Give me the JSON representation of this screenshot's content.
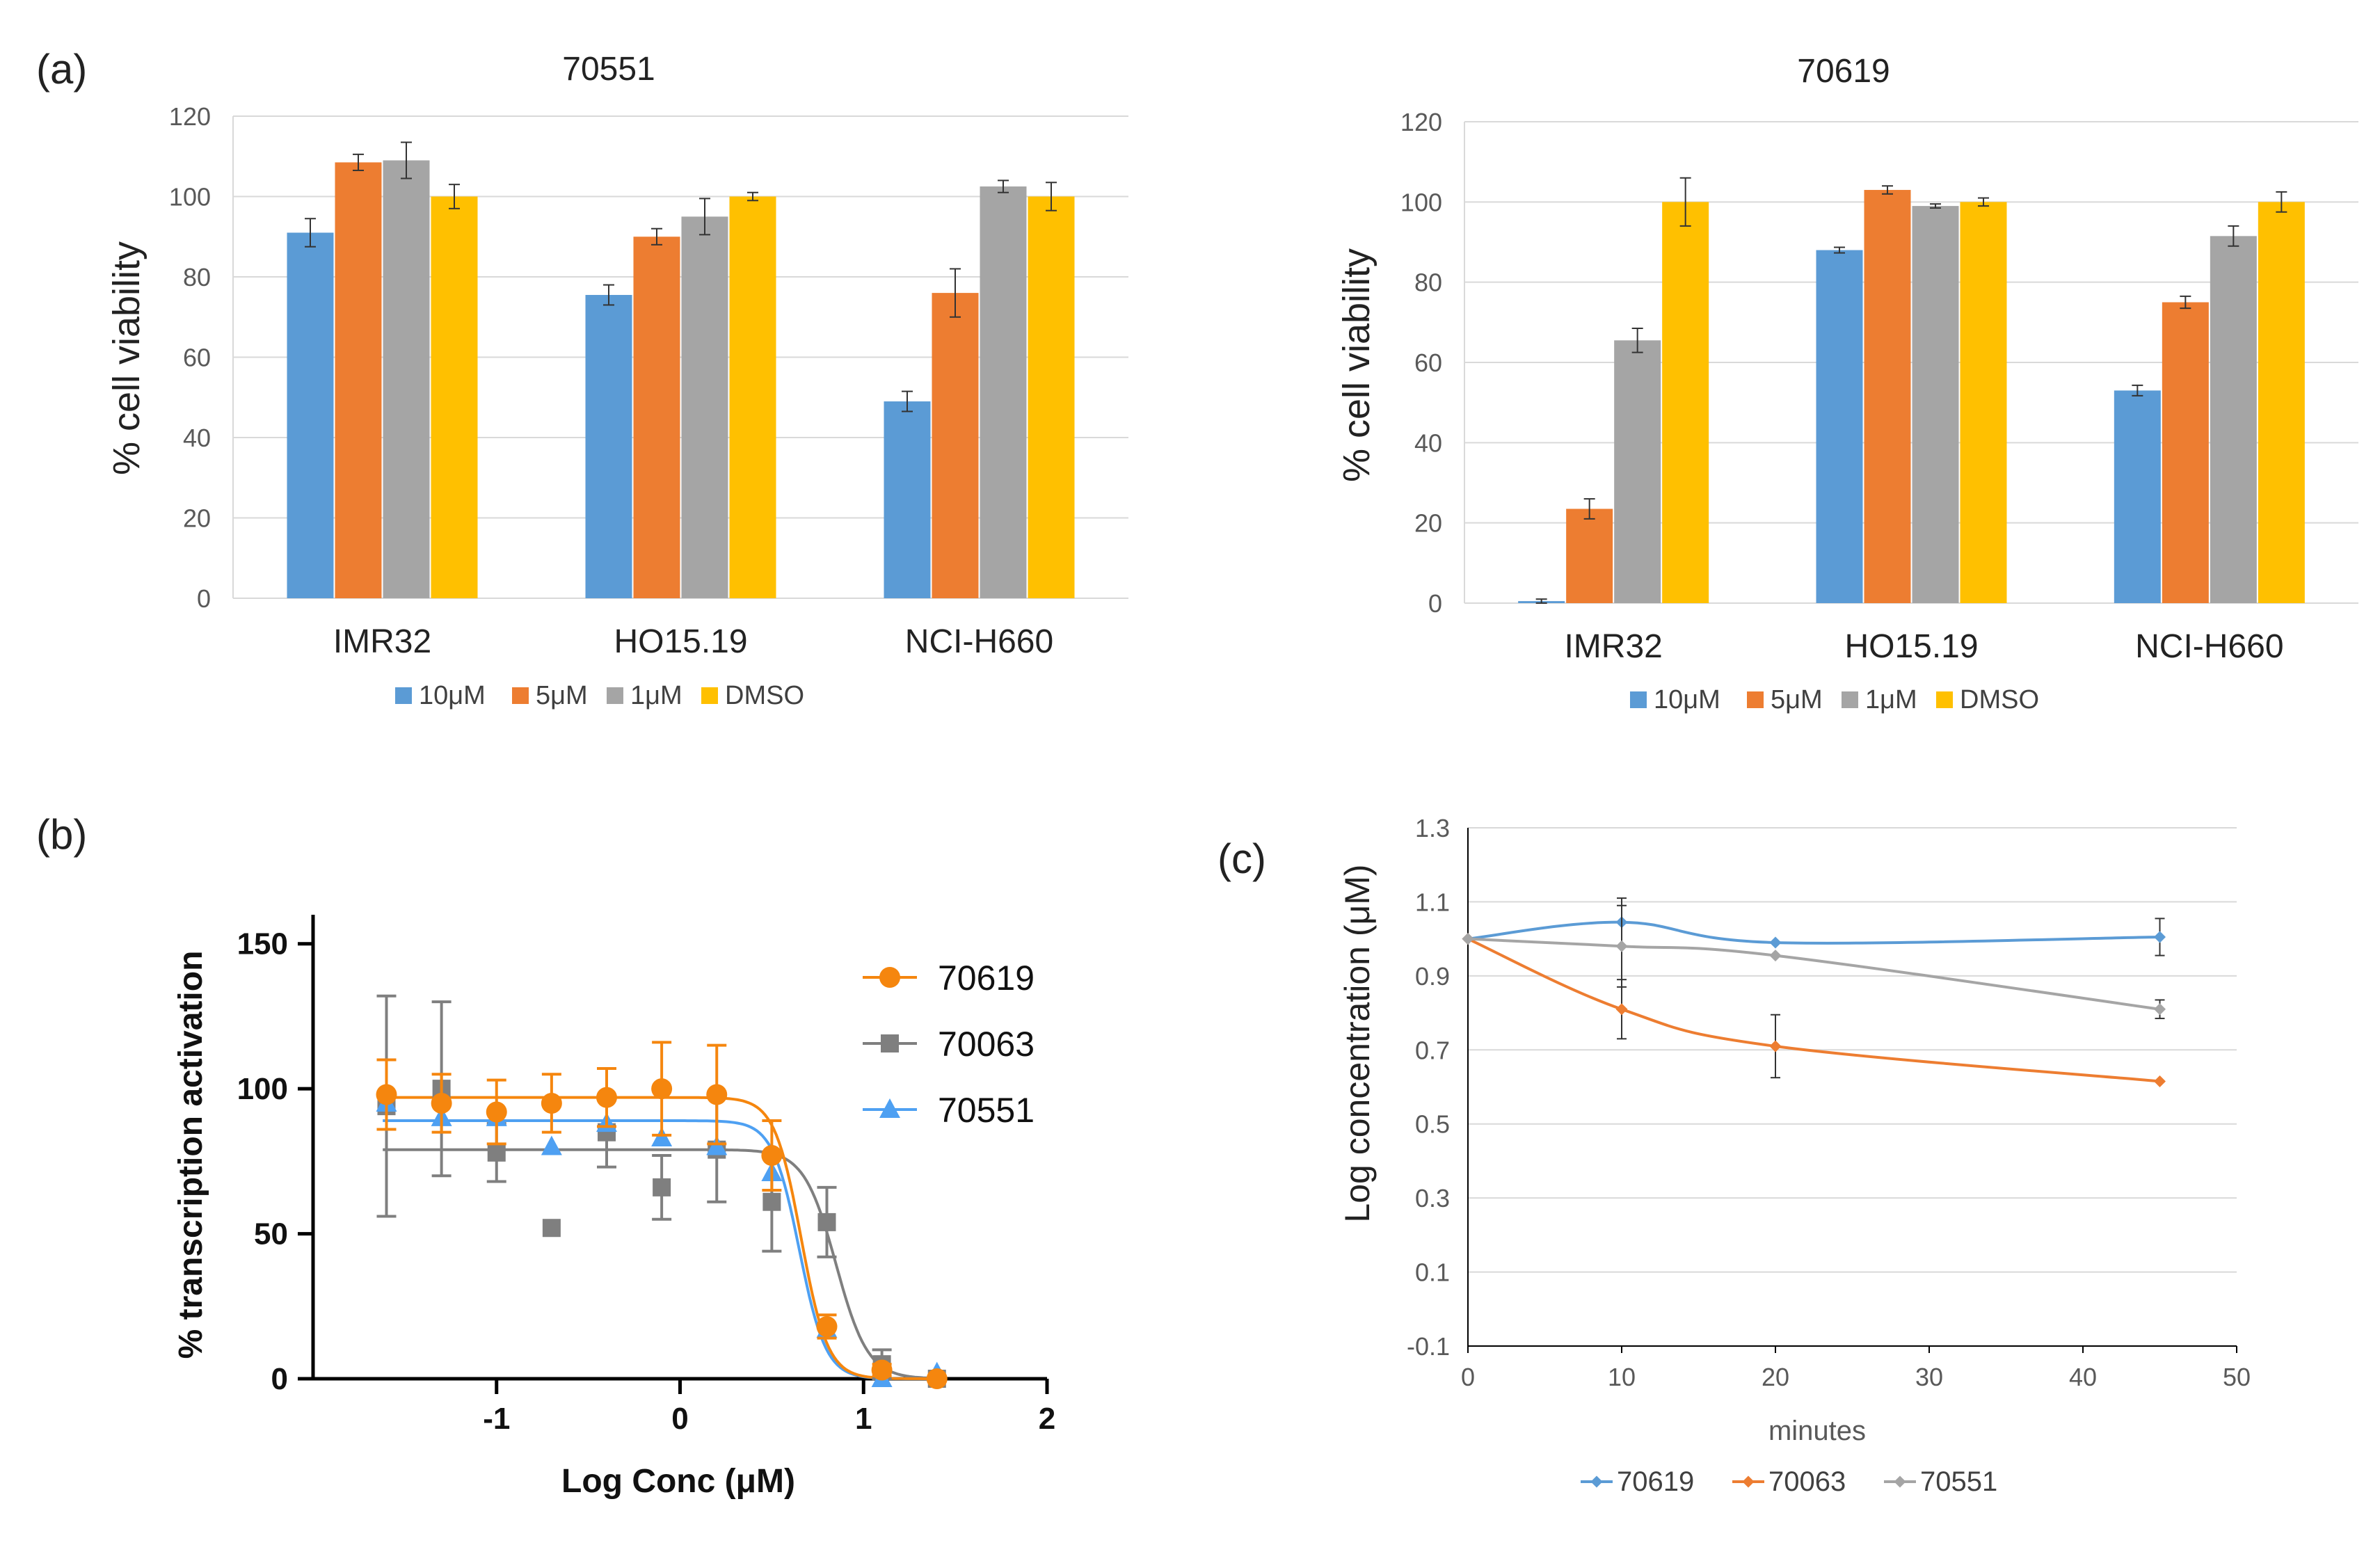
{
  "panels": {
    "a": "(a)",
    "b": "(b)",
    "c": "(c)"
  },
  "colors": {
    "c10": "#5B9BD5",
    "c5": "#ED7D31",
    "c1": "#A5A5A5",
    "dmso": "#FFC000",
    "gray": "#7F7F7F",
    "orange": "#F5860E",
    "blue": "#4EA0F2"
  },
  "chart_data": [
    {
      "id": "a1",
      "type": "bar",
      "title": "70551",
      "ylabel": "% cell viability",
      "ylim": [
        0,
        120
      ],
      "yticks": [
        "0",
        "20",
        "40",
        "60",
        "80",
        "100",
        "120"
      ],
      "categories": [
        "IMR32",
        "HO15.19",
        "NCI-H660"
      ],
      "series": [
        {
          "name": "10μM",
          "values": [
            91,
            75.5,
            49
          ],
          "err": [
            3.5,
            2.5,
            2.5
          ]
        },
        {
          "name": "5μM",
          "values": [
            108.5,
            90,
            76
          ],
          "err": [
            2,
            2,
            6
          ]
        },
        {
          "name": "1μM",
          "values": [
            109,
            95,
            102.5
          ],
          "err": [
            4.5,
            4.5,
            1.5
          ]
        },
        {
          "name": "DMSO",
          "values": [
            100,
            100,
            100
          ],
          "err": [
            3,
            1,
            3.5
          ]
        }
      ],
      "legend": [
        "10μM",
        "5μM",
        "1μM",
        "DMSO"
      ]
    },
    {
      "id": "a2",
      "type": "bar",
      "title": "70619",
      "ylabel": "% cell viability",
      "ylim": [
        0,
        120
      ],
      "yticks": [
        "0",
        "20",
        "40",
        "60",
        "80",
        "100",
        "120"
      ],
      "categories": [
        "IMR32",
        "HO15.19",
        "NCI-H660"
      ],
      "series": [
        {
          "name": "10μM",
          "values": [
            0.5,
            88,
            53
          ],
          "err": [
            0.5,
            0.7,
            1.3
          ]
        },
        {
          "name": "5μM",
          "values": [
            23.5,
            103,
            75
          ],
          "err": [
            2.5,
            1,
            1.5
          ]
        },
        {
          "name": "1μM",
          "values": [
            65.5,
            99,
            91.5
          ],
          "err": [
            3,
            0.5,
            2.5
          ]
        },
        {
          "name": "DMSO",
          "values": [
            100,
            100,
            100
          ],
          "err": [
            6,
            1,
            2.5
          ]
        }
      ],
      "legend": [
        "10μM",
        "5μM",
        "1μM",
        "DMSO"
      ]
    },
    {
      "id": "b",
      "type": "scatter",
      "xlabel": "Log Conc (μM)",
      "ylabel": "% transcription activation",
      "xlim": [
        -2,
        2
      ],
      "ylim": [
        0,
        160
      ],
      "xticks": [
        "-1",
        "0",
        "1",
        "2"
      ],
      "yticks": [
        "0",
        "50",
        "100",
        "150"
      ],
      "series": [
        {
          "name": "70063",
          "marker": "square",
          "x": [
            -1.6,
            -1.3,
            -1.0,
            -0.7,
            -0.4,
            -0.1,
            0.2,
            0.5,
            0.8,
            1.1,
            1.4
          ],
          "y": [
            94,
            100,
            78,
            52,
            85,
            66,
            79,
            61,
            54,
            5,
            0
          ],
          "err": [
            38,
            30,
            10,
            0,
            12,
            11,
            18,
            17,
            12,
            5,
            0
          ],
          "fit": {
            "top": 79,
            "ec50": 0.85,
            "hill": 5
          }
        },
        {
          "name": "70551",
          "marker": "triangle",
          "x": [
            -1.6,
            -1.3,
            -1.0,
            -0.7,
            -0.4,
            -0.1,
            0.2,
            0.5,
            0.8,
            1.1,
            1.4
          ],
          "y": [
            95,
            90,
            90,
            80,
            88,
            83,
            80,
            71,
            17,
            0,
            2
          ],
          "err": [
            0,
            0,
            0,
            0,
            0,
            0,
            0,
            0,
            0,
            0,
            0
          ],
          "fit": {
            "top": 89,
            "ec50": 0.65,
            "hill": 6
          }
        },
        {
          "name": "70619",
          "marker": "circle",
          "x": [
            -1.6,
            -1.3,
            -1.0,
            -0.7,
            -0.4,
            -0.1,
            0.2,
            0.5,
            0.8,
            1.1,
            1.4
          ],
          "y": [
            98,
            95,
            92,
            95,
            97,
            100,
            98,
            77,
            18,
            3,
            0
          ],
          "err": [
            12,
            10,
            11,
            10,
            10,
            16,
            17,
            12,
            4,
            2,
            0
          ],
          "fit": {
            "top": 97,
            "ec50": 0.66,
            "hill": 6
          }
        }
      ],
      "legend": [
        "70619",
        "70063",
        "70551"
      ]
    },
    {
      "id": "c",
      "type": "line",
      "xlabel": "minutes",
      "ylabel": "Log concentration (μM)",
      "xlim": [
        0,
        50
      ],
      "ylim": [
        -0.1,
        1.3
      ],
      "xticks": [
        "0",
        "10",
        "20",
        "30",
        "40",
        "50"
      ],
      "yticks": [
        "-0.1",
        "0.1",
        "0.3",
        "0.5",
        "0.7",
        "0.9",
        "1.1",
        "1.3"
      ],
      "series": [
        {
          "name": "70619",
          "x": [
            0,
            10,
            20,
            45
          ],
          "y": [
            1.0,
            1.045,
            0.99,
            1.005
          ],
          "err": [
            0,
            0.065,
            0,
            0.05
          ]
        },
        {
          "name": "70063",
          "x": [
            0,
            10,
            20,
            45
          ],
          "y": [
            1.0,
            0.81,
            0.71,
            0.615
          ],
          "err": [
            0,
            0.08,
            0.085,
            0
          ]
        },
        {
          "name": "70551",
          "x": [
            0,
            10,
            20,
            45
          ],
          "y": [
            1.0,
            0.98,
            0.955,
            0.81
          ],
          "err": [
            0,
            0.11,
            0,
            0.025
          ]
        }
      ],
      "legend": [
        "70619",
        "70063",
        "70551"
      ]
    }
  ]
}
